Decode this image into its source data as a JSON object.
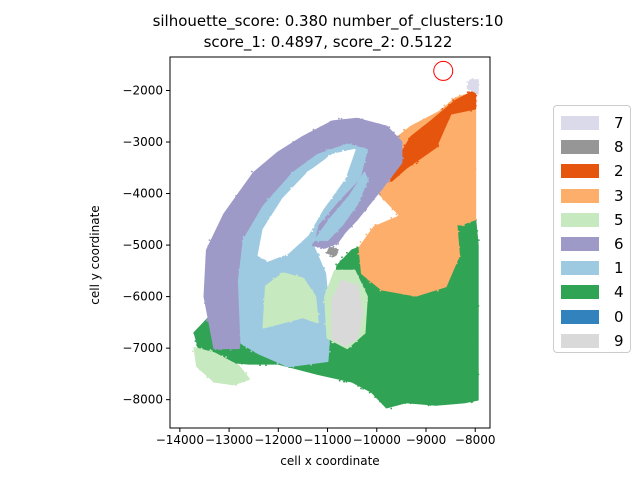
{
  "chart_data": {
    "type": "scatter",
    "title_line1": "silhouette_score: 0.380 number_of_clusters:10",
    "title_line2": "score_1: 0.4897, score_2: 0.5122",
    "xlabel": "cell x coordinate",
    "ylabel": "cell y coordinate",
    "xlim": [
      -14200,
      -7700
    ],
    "ylim": [
      -8550,
      -1350
    ],
    "xticks": [
      -14000,
      -13000,
      -12000,
      -11000,
      -10000,
      -9000,
      -8000
    ],
    "xtick_labels": [
      "−14000",
      "−13000",
      "−12000",
      "−11000",
      "−10000",
      "−9000",
      "−8000"
    ],
    "yticks": [
      -2000,
      -3000,
      -4000,
      -5000,
      -6000,
      -7000,
      -8000
    ],
    "ytick_labels": [
      "−2000",
      "−3000",
      "−4000",
      "−5000",
      "−6000",
      "−7000",
      "−8000"
    ],
    "grid": false,
    "legend_position": "right",
    "legend": [
      {
        "label": "7",
        "color": "#dadaeb"
      },
      {
        "label": "8",
        "color": "#969696"
      },
      {
        "label": "2",
        "color": "#e6550d"
      },
      {
        "label": "3",
        "color": "#fdae6b"
      },
      {
        "label": "5",
        "color": "#c7e9c0"
      },
      {
        "label": "6",
        "color": "#9e9ac8"
      },
      {
        "label": "1",
        "color": "#9ecae1"
      },
      {
        "label": "4",
        "color": "#31a354"
      },
      {
        "label": "0",
        "color": "#3182bd"
      },
      {
        "label": "9",
        "color": "#d9d9d9"
      }
    ],
    "marker": {
      "type": "circle",
      "x": -8650,
      "y": -1620,
      "color": "#ff0000",
      "fill": "none"
    },
    "clusters": [
      {
        "label": "4",
        "color": "#31a354",
        "region": [
          [
            -8100,
            -4550
          ],
          [
            -8000,
            -4500
          ],
          [
            -7950,
            -5000
          ],
          [
            -7950,
            -8000
          ],
          [
            -8200,
            -8050
          ],
          [
            -8800,
            -8100
          ],
          [
            -9400,
            -8050
          ],
          [
            -9800,
            -8150
          ],
          [
            -10100,
            -7850
          ],
          [
            -10500,
            -7650
          ],
          [
            -11200,
            -7500
          ],
          [
            -12000,
            -7300
          ],
          [
            -12600,
            -7300
          ],
          [
            -13200,
            -7250
          ],
          [
            -13600,
            -7050
          ],
          [
            -13700,
            -6700
          ],
          [
            -13400,
            -6400
          ],
          [
            -12900,
            -6500
          ],
          [
            -12700,
            -6950
          ],
          [
            -12300,
            -7000
          ],
          [
            -11000,
            -6700
          ],
          [
            -10800,
            -5400
          ],
          [
            -10500,
            -5100
          ],
          [
            -10050,
            -4950
          ],
          [
            -9800,
            -4700
          ],
          [
            -9400,
            -4550
          ],
          [
            -8700,
            -4650
          ]
        ]
      },
      {
        "label": "5",
        "color": "#c7e9c0",
        "region": [
          [
            -13700,
            -7000
          ],
          [
            -13300,
            -7100
          ],
          [
            -12800,
            -7350
          ],
          [
            -12600,
            -7600
          ],
          [
            -12900,
            -7700
          ],
          [
            -13300,
            -7650
          ],
          [
            -13650,
            -7350
          ]
        ]
      },
      {
        "label": "3",
        "color": "#fdae6b",
        "region": [
          [
            -8050,
            -2050
          ],
          [
            -8000,
            -2200
          ],
          [
            -8000,
            -4500
          ],
          [
            -8300,
            -4600
          ],
          [
            -9000,
            -4550
          ],
          [
            -9500,
            -4450
          ],
          [
            -9800,
            -4150
          ],
          [
            -10000,
            -3950
          ],
          [
            -10250,
            -3850
          ],
          [
            -10100,
            -3400
          ],
          [
            -9700,
            -3000
          ],
          [
            -9300,
            -2700
          ],
          [
            -8700,
            -2400
          ],
          [
            -8400,
            -2150
          ]
        ]
      },
      {
        "label": "2",
        "color": "#e6550d",
        "region": [
          [
            -8000,
            -2000
          ],
          [
            -8000,
            -2350
          ],
          [
            -8500,
            -2450
          ],
          [
            -8800,
            -3100
          ],
          [
            -9400,
            -3500
          ],
          [
            -9700,
            -3750
          ],
          [
            -9550,
            -3300
          ],
          [
            -9300,
            -2900
          ],
          [
            -8900,
            -2600
          ],
          [
            -8400,
            -2200
          ]
        ]
      },
      {
        "label": "0",
        "color": "#3182bd",
        "region": [
          [
            -10250,
            -5050
          ],
          [
            -10000,
            -4750
          ],
          [
            -9500,
            -4550
          ],
          [
            -8900,
            -4550
          ],
          [
            -8500,
            -4700
          ],
          [
            -8450,
            -5150
          ],
          [
            -8700,
            -5700
          ],
          [
            -9200,
            -5850
          ],
          [
            -9800,
            -5750
          ],
          [
            -10200,
            -5500
          ]
        ]
      },
      {
        "label": "0-border",
        "color": "#fdae6b",
        "region": [
          [
            -10350,
            -5050
          ],
          [
            -10050,
            -4650
          ],
          [
            -9500,
            -4430
          ],
          [
            -8850,
            -4430
          ],
          [
            -8380,
            -4620
          ],
          [
            -8330,
            -5200
          ],
          [
            -8600,
            -5800
          ],
          [
            -9200,
            -5980
          ],
          [
            -9900,
            -5860
          ],
          [
            -10300,
            -5550
          ]
        ]
      },
      {
        "label": "6",
        "color": "#9e9ac8",
        "region": [
          [
            -13500,
            -6000
          ],
          [
            -13450,
            -5100
          ],
          [
            -13100,
            -4400
          ],
          [
            -12500,
            -3600
          ],
          [
            -12000,
            -3200
          ],
          [
            -11500,
            -2900
          ],
          [
            -10900,
            -2600
          ],
          [
            -10400,
            -2550
          ],
          [
            -9800,
            -2700
          ],
          [
            -9500,
            -3000
          ],
          [
            -9500,
            -3400
          ],
          [
            -9900,
            -3900
          ],
          [
            -10400,
            -4500
          ],
          [
            -10800,
            -4900
          ],
          [
            -11200,
            -5000
          ],
          [
            -11300,
            -4700
          ],
          [
            -10900,
            -4200
          ],
          [
            -10400,
            -3700
          ],
          [
            -10200,
            -3200
          ],
          [
            -10600,
            -3050
          ],
          [
            -11200,
            -3250
          ],
          [
            -11800,
            -3650
          ],
          [
            -12300,
            -4300
          ],
          [
            -12700,
            -5000
          ],
          [
            -12700,
            -5800
          ],
          [
            -12800,
            -7000
          ],
          [
            -13300,
            -7000
          ]
        ]
      },
      {
        "label": "1",
        "color": "#9ecae1",
        "region": [
          [
            -12750,
            -6900
          ],
          [
            -12800,
            -5700
          ],
          [
            -12700,
            -4900
          ],
          [
            -12300,
            -4250
          ],
          [
            -11700,
            -3600
          ],
          [
            -11200,
            -3250
          ],
          [
            -10600,
            -3050
          ],
          [
            -10200,
            -3150
          ],
          [
            -10350,
            -3700
          ],
          [
            -10800,
            -4150
          ],
          [
            -11200,
            -4600
          ],
          [
            -11300,
            -5000
          ],
          [
            -11050,
            -5550
          ],
          [
            -10950,
            -6500
          ],
          [
            -11000,
            -7250
          ],
          [
            -11800,
            -7350
          ],
          [
            -12400,
            -7100
          ]
        ]
      },
      {
        "label": "6-inner",
        "color": "#9e9ac8",
        "region": [
          [
            -11300,
            -5000
          ],
          [
            -11050,
            -4700
          ],
          [
            -10600,
            -4200
          ],
          [
            -10300,
            -3700
          ],
          [
            -10050,
            -3350
          ],
          [
            -10050,
            -3600
          ],
          [
            -10250,
            -4100
          ],
          [
            -10500,
            -4550
          ],
          [
            -10800,
            -4950
          ],
          [
            -11050,
            -5050
          ]
        ]
      },
      {
        "label": "1-inner",
        "color": "#9ecae1",
        "region": [
          [
            -11250,
            -4900
          ],
          [
            -10950,
            -4500
          ],
          [
            -10550,
            -4050
          ],
          [
            -10250,
            -3600
          ],
          [
            -10200,
            -3750
          ],
          [
            -10400,
            -4200
          ],
          [
            -10700,
            -4600
          ],
          [
            -11000,
            -4900
          ]
        ]
      },
      {
        "label": "hole",
        "color": "#ffffff",
        "region": [
          [
            -12400,
            -5200
          ],
          [
            -12300,
            -4700
          ],
          [
            -11900,
            -4100
          ],
          [
            -11400,
            -3600
          ],
          [
            -10900,
            -3250
          ],
          [
            -10450,
            -3150
          ],
          [
            -10650,
            -3700
          ],
          [
            -11100,
            -4300
          ],
          [
            -11400,
            -4800
          ],
          [
            -11800,
            -5150
          ],
          [
            -12200,
            -5300
          ]
        ]
      },
      {
        "label": "5-a",
        "color": "#c7e9c0",
        "region": [
          [
            -12300,
            -6600
          ],
          [
            -12250,
            -5800
          ],
          [
            -11900,
            -5550
          ],
          [
            -11500,
            -5650
          ],
          [
            -11250,
            -6000
          ],
          [
            -11200,
            -6500
          ],
          [
            -11500,
            -6400
          ],
          [
            -11900,
            -6500
          ]
        ]
      },
      {
        "label": "5-b",
        "color": "#c7e9c0",
        "region": [
          [
            -11000,
            -6800
          ],
          [
            -11050,
            -6000
          ],
          [
            -10850,
            -5500
          ],
          [
            -10450,
            -5500
          ],
          [
            -10200,
            -6000
          ],
          [
            -10250,
            -6700
          ],
          [
            -10600,
            -7000
          ]
        ]
      },
      {
        "label": "9",
        "color": "#d9d9d9",
        "region": [
          [
            -10900,
            -6800
          ],
          [
            -10900,
            -6050
          ],
          [
            -10700,
            -5700
          ],
          [
            -10400,
            -5800
          ],
          [
            -10300,
            -6300
          ],
          [
            -10400,
            -6800
          ],
          [
            -10650,
            -6950
          ]
        ]
      },
      {
        "label": "8",
        "color": "#969696",
        "region": [
          [
            -11000,
            -5150
          ],
          [
            -10950,
            -5050
          ],
          [
            -10800,
            -5100
          ],
          [
            -10850,
            -5200
          ]
        ]
      },
      {
        "label": "7",
        "color": "#dadaeb",
        "region": [
          [
            -8150,
            -1950
          ],
          [
            -8100,
            -1800
          ],
          [
            -7950,
            -1800
          ],
          [
            -7950,
            -2050
          ]
        ]
      }
    ]
  }
}
